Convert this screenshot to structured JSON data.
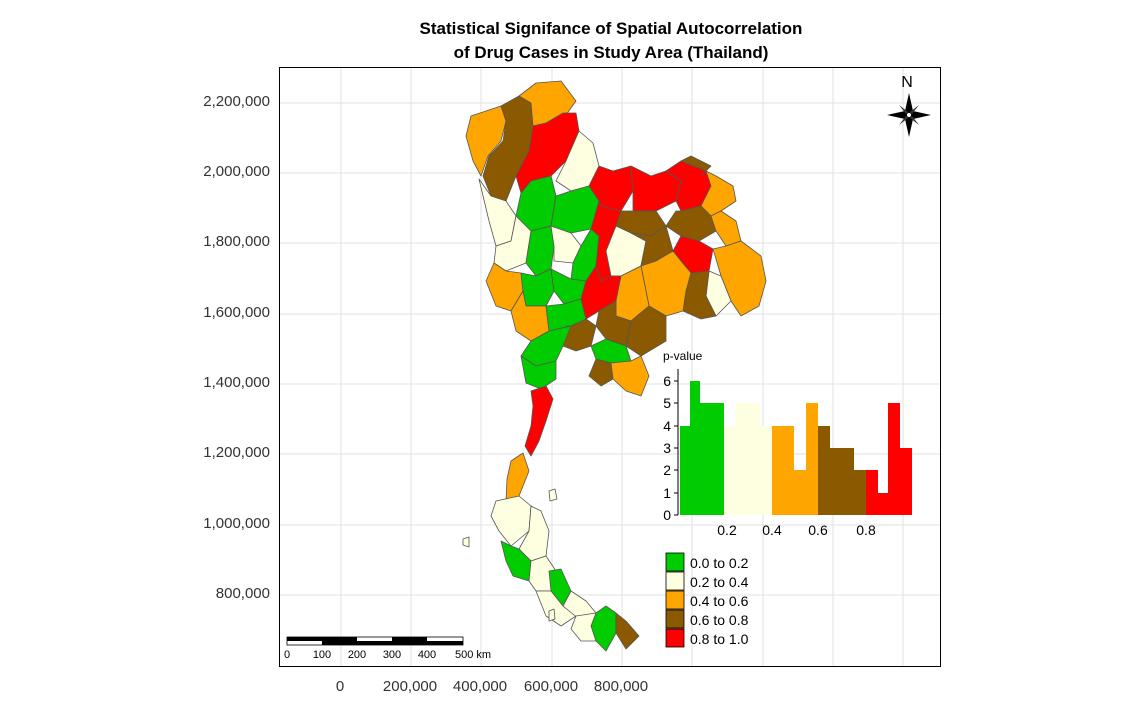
{
  "title_line1": "Statistical Signifance of Spatial Autocorrelation",
  "title_line2": "of Drug Cases in Study Area (Thailand)",
  "y_ticks": [
    "2,200,000",
    "2,000,000",
    "1,800,000",
    "1,600,000",
    "1,400,000",
    "1,200,000",
    "1,000,000",
    "800,000"
  ],
  "x_ticks": [
    "0",
    "200,000",
    "400,000",
    "600,000",
    "800,000"
  ],
  "north_label": "N",
  "colors": {
    "c1": "#00cc00",
    "c2": "#fefee0",
    "c3": "#ffa500",
    "c4": "#8b5a00",
    "c5": "#ff0000"
  },
  "histogram": {
    "ylabel": "p-value",
    "y_ticks": [
      "0",
      "1",
      "2",
      "3",
      "4",
      "5",
      "6"
    ],
    "x_ticks": [
      "0.2",
      "0.4",
      "0.6",
      "0.8"
    ]
  },
  "legend": {
    "items": [
      {
        "label": "0.0 to 0.2",
        "color": "#00cc00"
      },
      {
        "label": "0.2 to 0.4",
        "color": "#fefee0"
      },
      {
        "label": "0.4 to 0.6",
        "color": "#ffa500"
      },
      {
        "label": "0.6 to 0.8",
        "color": "#8b5a00"
      },
      {
        "label": "0.8 to 1.0",
        "color": "#ff0000"
      }
    ]
  },
  "scalebar": {
    "labels": [
      "0",
      "100",
      "200",
      "300",
      "400",
      "500 km"
    ]
  }
}
